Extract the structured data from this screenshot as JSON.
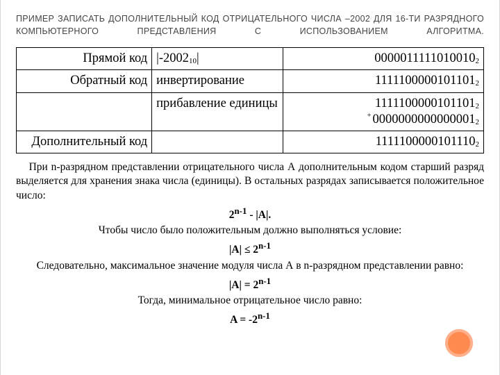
{
  "title": "ПРИМЕР ЗАПИСАТЬ ДОПОЛНИТЕЛЬНЫЙ КОД ОТРИЦАТЕЛЬНОГО ЧИСЛА –2002 ДЛЯ 16-ТИ РАЗРЯДНОГО КОМПЬЮТЕРНОГО ПРЕДСТАВЛЕНИЯ С ИСПОЛЬЗОВАНИЕМ АЛГОРИТМА.",
  "table": {
    "rows": [
      {
        "c0": "Прямой код",
        "c1_pre": "|-2002",
        "c1_sub": "10",
        "c1_post": "|",
        "c2_main": "0000011111010010",
        "c2_sub": "2"
      },
      {
        "c0": "Обратный код",
        "c1": "инвертирование",
        "c2_main": "1111100000101101",
        "c2_sub": "2"
      },
      {
        "c0": "",
        "c1": "прибавление единицы",
        "c2_line1_main": "1111100000101101",
        "c2_line1_sub": "2",
        "c2_line2_plus": "+",
        "c2_line2_main": "0000000000000001",
        "c2_line2_sub": "2"
      },
      {
        "c0": "Дополнительный код",
        "c1": "",
        "c2_main": "1111100000101110",
        "c2_sub": "2"
      }
    ]
  },
  "body": {
    "p1": "При n-разрядном представлении отрицательного числа А дополнительным кодом старший разряд выделяется для хранения знака числа (единицы). В остальных разрядах записывается положительное число:",
    "f1_a": "2",
    "f1_exp": "n-1",
    "f1_b": " - |A|.",
    "p2": "Чтобы число было положительным должно выполняться условие:",
    "f2_a": "|A| ≤ 2",
    "f2_exp": "n-1",
    "p3": "Следовательно, максимальное значение модуля числа А в n-разрядном представлении равно:",
    "f3_a": "|A| = 2",
    "f3_exp": "n-1",
    "p4": "Тогда, минимальное отрицательное число равно:",
    "f4_a": "A = -2",
    "f4_exp": "n-1"
  },
  "colors": {
    "accent": "#ff8a50"
  }
}
